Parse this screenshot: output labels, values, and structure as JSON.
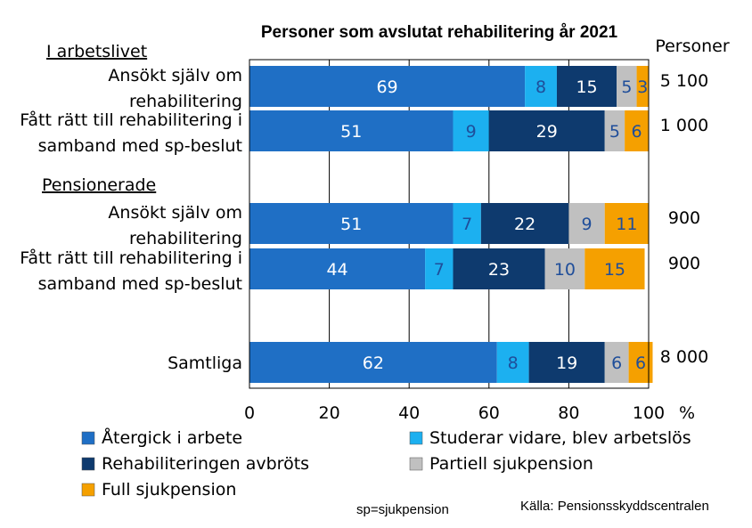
{
  "chart_data": {
    "type": "bar",
    "orientation": "horizontal-stacked-percent",
    "title": "Personer som avslutat rehabilitering år 2021",
    "totals_header": "Personer",
    "x_unit": "%",
    "xlim": [
      0,
      100
    ],
    "x_ticks": [
      "0",
      "20",
      "40",
      "60",
      "80",
      "100"
    ],
    "grid": true,
    "legend_position": "bottom",
    "groups": [
      "I arbetslivet",
      "Pensionerade"
    ],
    "categories": [
      {
        "label_lines": [
          "Ansökt själv om",
          "rehabilitering"
        ],
        "group": "I arbetslivet",
        "total": "5 100"
      },
      {
        "label_lines": [
          "Fått rätt till rehabilitering i",
          "samband med sp-beslut"
        ],
        "group": "I arbetslivet",
        "total": "1 000"
      },
      {
        "label_lines": [
          "Ansökt själv om",
          "rehabilitering"
        ],
        "group": "Pensionerade",
        "total": "900"
      },
      {
        "label_lines": [
          "Fått rätt till rehabilitering i",
          "samband med sp-beslut"
        ],
        "group": "Pensionerade",
        "total": "900"
      },
      {
        "label_lines": [
          "Samtliga"
        ],
        "group": "",
        "total": "8 000"
      }
    ],
    "series": [
      {
        "name": "Återgick i arbete",
        "color": "#1F6FC5",
        "label_color": "#FFFFFF",
        "values": [
          69,
          51,
          51,
          44,
          62
        ]
      },
      {
        "name": "Studerar vidare, blev arbetslös",
        "color": "#1CB0F0",
        "label_color": "#1F4E9A",
        "values": [
          8,
          9,
          7,
          7,
          8
        ]
      },
      {
        "name": "Rehabiliteringen avbröts",
        "color": "#0E3A6E",
        "label_color": "#FFFFFF",
        "values": [
          15,
          29,
          22,
          23,
          19
        ]
      },
      {
        "name": "Partiell sjukpension",
        "color": "#C0C0C0",
        "label_color": "#1F4E9A",
        "values": [
          5,
          5,
          9,
          10,
          6
        ]
      },
      {
        "name": "Full sjukpension",
        "color": "#F5A000",
        "label_color": "#1F4E9A",
        "values": [
          3,
          6,
          11,
          15,
          6
        ]
      }
    ],
    "legend_layout": [
      [
        0,
        1
      ],
      [
        2,
        3
      ],
      [
        4
      ]
    ],
    "notes": {
      "abbrev": "sp=sjukpension",
      "source": "Källa: Pensionsskyddscentralen"
    }
  }
}
